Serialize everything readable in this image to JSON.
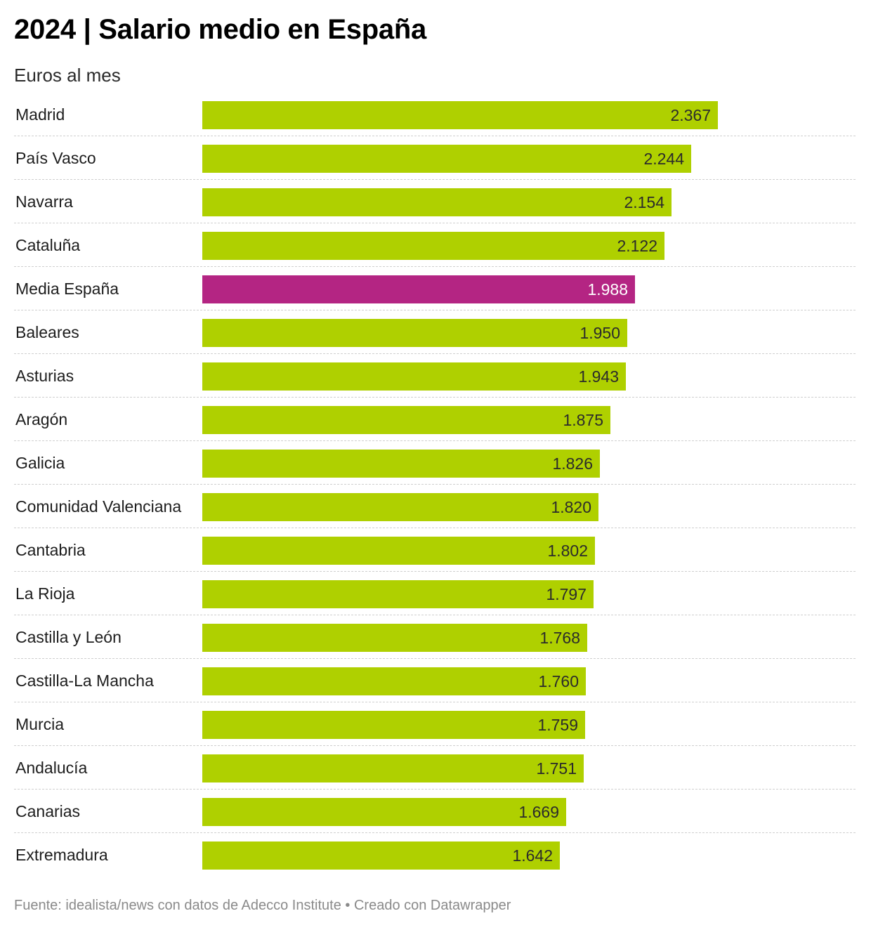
{
  "header": {
    "title": "2024 | Salario medio en España",
    "subtitle": "Euros al mes"
  },
  "footer": {
    "source": "Fuente: idealista/news con datos de Adecco Institute • Creado con Datawrapper"
  },
  "colors": {
    "default_bar": "#afd000",
    "highlight_bar": "#b42583",
    "default_value_text": "#2b2b2b",
    "highlight_value_text": "#ffffff"
  },
  "chart_data": {
    "type": "bar",
    "orientation": "horizontal",
    "title": "2024 | Salario medio en España",
    "subtitle": "Euros al mes",
    "xlabel": "",
    "ylabel": "",
    "xlim": [
      0,
      2367
    ],
    "grid": false,
    "categories": [
      "Madrid",
      "País Vasco",
      "Navarra",
      "Cataluña",
      "Media España",
      "Baleares",
      "Asturias",
      "Aragón",
      "Galicia",
      "Comunidad Valenciana",
      "Cantabria",
      "La Rioja",
      "Castilla y León",
      "Castilla-La Mancha",
      "Murcia",
      "Andalucía",
      "Canarias",
      "Extremadura"
    ],
    "values": [
      2367,
      2244,
      2154,
      2122,
      1988,
      1950,
      1943,
      1875,
      1826,
      1820,
      1802,
      1797,
      1768,
      1760,
      1759,
      1751,
      1669,
      1642
    ],
    "value_labels": [
      "2.367",
      "2.244",
      "2.154",
      "2.122",
      "1.988",
      "1.950",
      "1.943",
      "1.875",
      "1.826",
      "1.820",
      "1.802",
      "1.797",
      "1.768",
      "1.760",
      "1.759",
      "1.751",
      "1.669",
      "1.642"
    ],
    "highlight": [
      "Media España"
    ]
  }
}
